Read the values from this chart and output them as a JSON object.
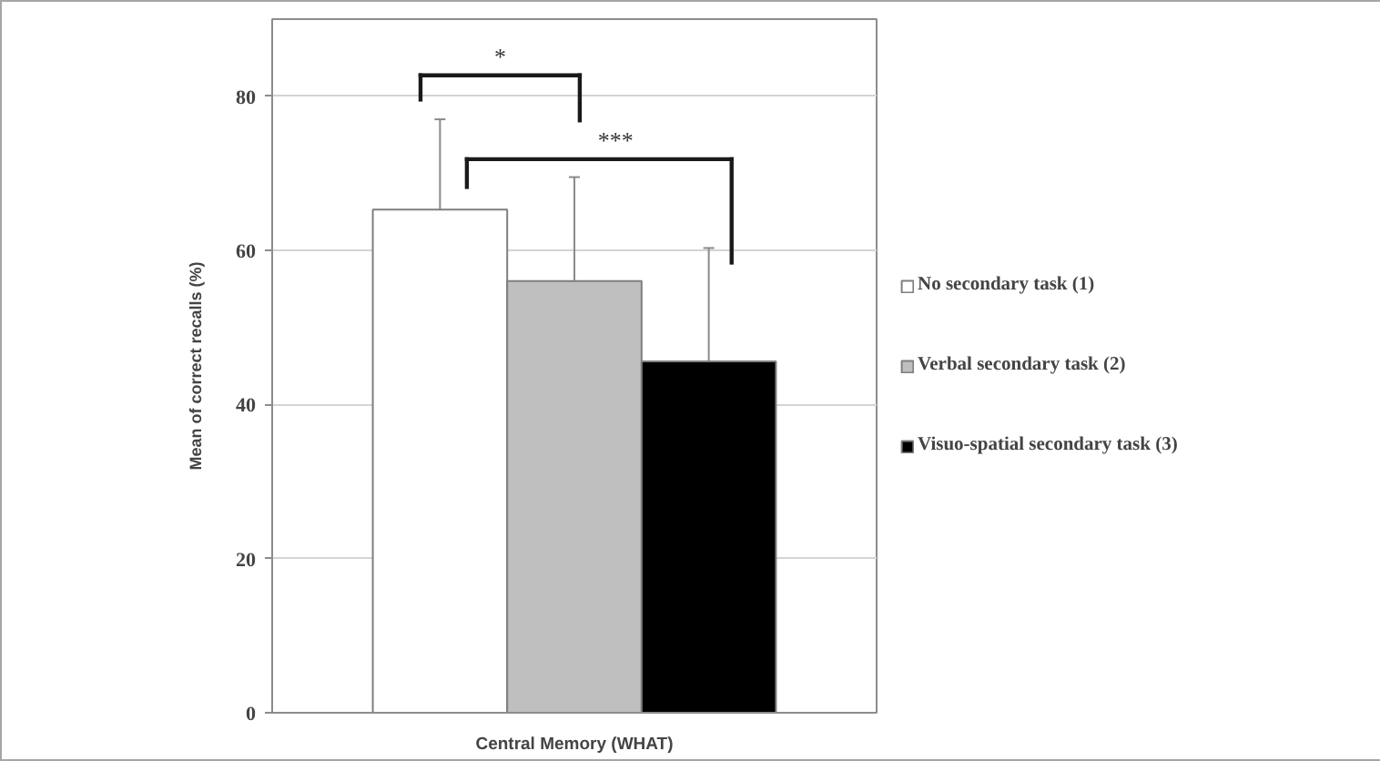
{
  "chart_data": {
    "type": "bar",
    "categories": [
      "Central Memory (WHAT)"
    ],
    "series": [
      {
        "name": "No secondary task (1)",
        "color": "#ffffff",
        "values": [
          65.3
        ],
        "errors": [
          11.7
        ]
      },
      {
        "name": "Verbal secondary task (2)",
        "color": "#bfbfbf",
        "values": [
          56.0
        ],
        "errors": [
          13.5
        ]
      },
      {
        "name": "Visuo-spatial secondary task (3)",
        "color": "#000000",
        "values": [
          45.6
        ],
        "errors": [
          14.7
        ]
      }
    ],
    "ylabel": "Mean of correct recalls (%)",
    "ylim": [
      0,
      90
    ],
    "yticks": [
      0,
      20,
      40,
      60,
      80
    ],
    "grid": "y",
    "legend": "right",
    "annotations": [
      "*",
      "***"
    ]
  }
}
